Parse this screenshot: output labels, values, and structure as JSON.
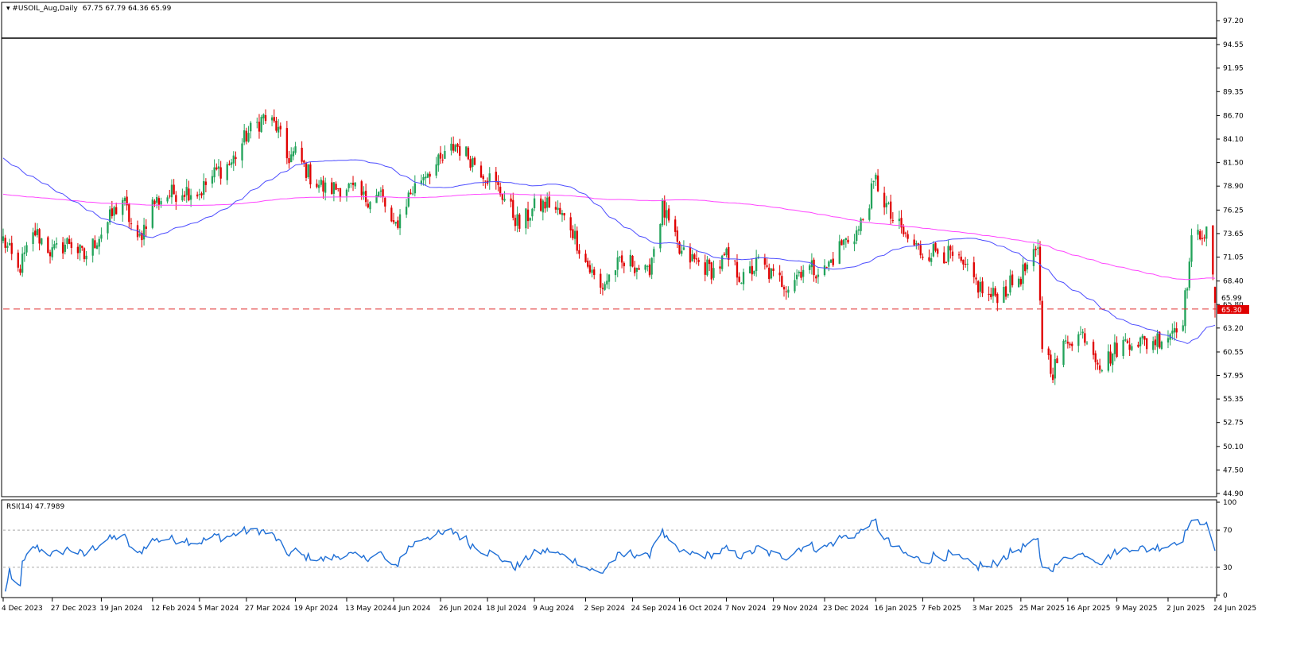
{
  "header": {
    "symbol": "#USOIL_Aug,Daily",
    "ohlc": "67.75 67.79 64.36 65.99"
  },
  "rsi_label": "RSI(14) 47.7989",
  "chart_data": [
    {
      "type": "candlestick",
      "title": "#USOIL_Aug,Daily",
      "ylim": [
        44.9,
        97.2
      ],
      "y_ticks": [
        "97.20",
        "94.55",
        "91.95",
        "89.35",
        "86.70",
        "84.10",
        "81.50",
        "78.90",
        "76.25",
        "73.65",
        "71.05",
        "68.40",
        "65.80",
        "63.20",
        "60.55",
        "57.95",
        "55.35",
        "52.75",
        "50.10",
        "47.50",
        "44.90"
      ],
      "x_ticks": [
        "4 Dec 2023",
        "27 Dec 2023",
        "19 Jan 2024",
        "12 Feb 2024",
        "5 Mar 2024",
        "27 Mar 2024",
        "19 Apr 2024",
        "13 May 2024",
        "4 Jun 2024",
        "26 Jun 2024",
        "18 Jul 2024",
        "9 Aug 2024",
        "2 Sep 2024",
        "24 Sep 2024",
        "16 Oct 2024",
        "7 Nov 2024",
        "29 Nov 2024",
        "23 Dec 2024",
        "16 Jan 2025",
        "7 Feb 2025",
        "3 Mar 2025",
        "25 Mar 2025",
        "16 Apr 2025",
        "9 May 2025",
        "2 Jun 2025",
        "24 Jun 2025"
      ],
      "close_path": [
        [
          "4 Dec 2023",
          73.0
        ],
        [
          "11 Dec 2023",
          69.5
        ],
        [
          "19 Dec 2023",
          73.8
        ],
        [
          "27 Dec 2023",
          71.5
        ],
        [
          "4 Jan 2024",
          72.8
        ],
        [
          "11 Jan 2024",
          71.0
        ],
        [
          "19 Jan 2024",
          73.8
        ],
        [
          "29 Jan 2024",
          77.5
        ],
        [
          "5 Feb 2024",
          72.5
        ],
        [
          "12 Feb 2024",
          77.0
        ],
        [
          "20 Feb 2024",
          78.0
        ],
        [
          "27 Feb 2024",
          78.5
        ],
        [
          "5 Mar 2024",
          78.2
        ],
        [
          "13 Mar 2024",
          80.5
        ],
        [
          "20 Mar 2024",
          81.5
        ],
        [
          "27 Mar 2024",
          84.5
        ],
        [
          "4 Apr 2024",
          86.5
        ],
        [
          "10 Apr 2024",
          85.5
        ],
        [
          "15 Apr 2024",
          82.0
        ],
        [
          "19 Apr 2024",
          82.5
        ],
        [
          "26 Apr 2024",
          80.0
        ],
        [
          "3 May 2024",
          78.5
        ],
        [
          "13 May 2024",
          78.9
        ],
        [
          "21 May 2024",
          77.5
        ],
        [
          "29 May 2024",
          78.0
        ],
        [
          "4 Jun 2024",
          74.0
        ],
        [
          "11 Jun 2024",
          77.8
        ],
        [
          "19 Jun 2024",
          80.5
        ],
        [
          "26 Jun 2024",
          81.5
        ],
        [
          "3 Jul 2024",
          83.5
        ],
        [
          "10 Jul 2024",
          82.0
        ],
        [
          "18 Jul 2024",
          80.0
        ],
        [
          "25 Jul 2024",
          78.0
        ],
        [
          "2 Aug 2024",
          74.5
        ],
        [
          "9 Aug 2024",
          76.5
        ],
        [
          "16 Aug 2024",
          77.0
        ],
        [
          "26 Aug 2024",
          74.5
        ],
        [
          "2 Sep 2024",
          70.5
        ],
        [
          "9 Sep 2024",
          67.5
        ],
        [
          "16 Sep 2024",
          70.0
        ],
        [
          "24 Sep 2024",
          70.5
        ],
        [
          "1 Oct 2024",
          69.0
        ],
        [
          "8 Oct 2024",
          76.5
        ],
        [
          "16 Oct 2024",
          71.5
        ],
        [
          "24 Oct 2024",
          70.5
        ],
        [
          "1 Nov 2024",
          69.5
        ],
        [
          "7 Nov 2024",
          71.0
        ],
        [
          "15 Nov 2024",
          68.5
        ],
        [
          "22 Nov 2024",
          70.5
        ],
        [
          "29 Nov 2024",
          68.8
        ],
        [
          "6 Dec 2024",
          68.0
        ],
        [
          "13 Dec 2024",
          70.0
        ],
        [
          "23 Dec 2024",
          69.5
        ],
        [
          "31 Dec 2024",
          72.5
        ],
        [
          "8 Jan 2025",
          74.0
        ],
        [
          "16 Jan 2025",
          79.5
        ],
        [
          "23 Jan 2025",
          75.5
        ],
        [
          "31 Jan 2025",
          73.0
        ],
        [
          "7 Feb 2025",
          71.5
        ],
        [
          "14 Feb 2025",
          71.8
        ],
        [
          "21 Feb 2025",
          71.0
        ],
        [
          "3 Mar 2025",
          68.5
        ],
        [
          "10 Mar 2025",
          66.5
        ],
        [
          "18 Mar 2025",
          67.5
        ],
        [
          "25 Mar 2025",
          69.0
        ],
        [
          "2 Apr 2025",
          71.5
        ],
        [
          "4 Apr 2025",
          61.5
        ],
        [
          "9 Apr 2025",
          58.5
        ],
        [
          "16 Apr 2025",
          62.0
        ],
        [
          "24 Apr 2025",
          62.5
        ],
        [
          "2 May 2025",
          59.0
        ],
        [
          "9 May 2025",
          61.0
        ],
        [
          "16 May 2025",
          62.0
        ],
        [
          "23 May 2025",
          61.5
        ],
        [
          "2 Jun 2025",
          62.5
        ],
        [
          "9 Jun 2025",
          64.5
        ],
        [
          "13 Jun 2025",
          72.5
        ],
        [
          "18 Jun 2025",
          74.0
        ],
        [
          "20 Jun 2025",
          73.5
        ],
        [
          "23 Jun 2025",
          68.5
        ],
        [
          "24 Jun 2025",
          65.99
        ]
      ],
      "ma_fast_color": "#4d4dff",
      "ma_slow_color": "#ff44ff",
      "up_color": "#22a35a",
      "down_color": "#e00000",
      "support_level": 65.3,
      "support_label": "65.30",
      "last_price_label": "65.99",
      "grid": false
    },
    {
      "type": "line",
      "title": "RSI(14) 47.7989",
      "ylim": [
        0,
        100
      ],
      "y_ticks": [
        "100",
        "70",
        "30",
        "0"
      ],
      "levels": [
        70,
        30
      ],
      "line_color": "#1f6fd6",
      "last_value": 47.7989
    }
  ]
}
